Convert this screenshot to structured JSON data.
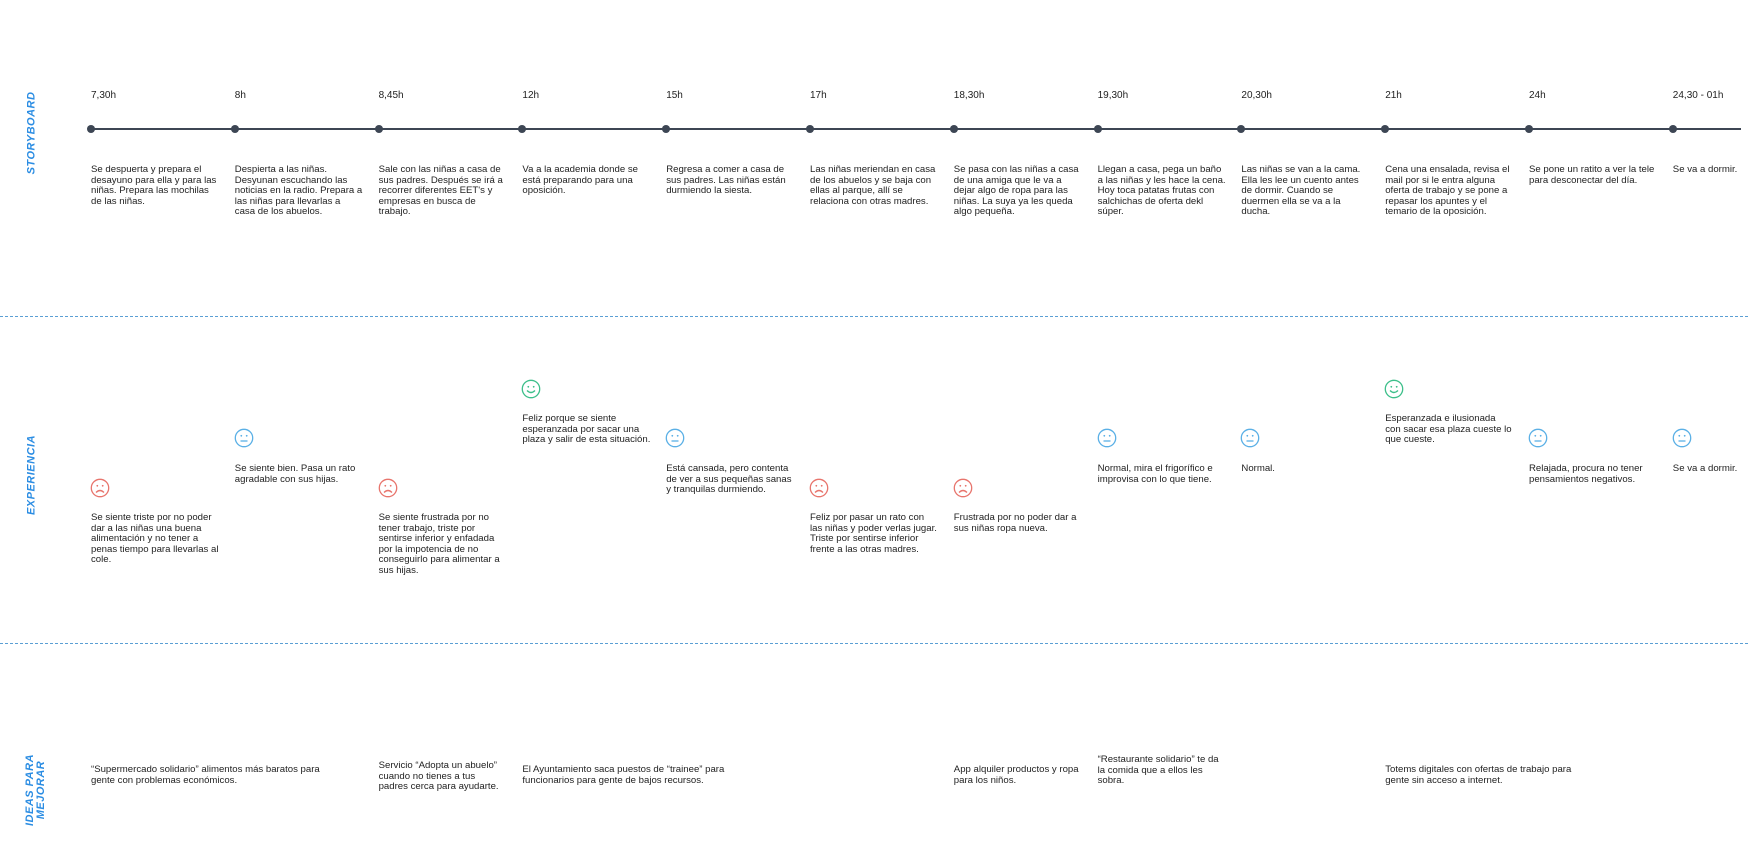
{
  "sections": {
    "storyboard": "STORYBOARD",
    "experiencia": "EXPERIENCIA",
    "ideas_line1": "IDEAS PARA",
    "ideas_line2": "MEJORAR"
  },
  "colors": {
    "sad": "#e8756d",
    "neutral": "#5bb0e6",
    "happy": "#3dbf8a",
    "section_label": "#2b8de3",
    "timeline": "#3d4654"
  },
  "storyboard": [
    {
      "time": "7,30h",
      "text": "Se despuerta y prepara el desayuno para ella y para las niñas. Prepara las mochilas de las niñas."
    },
    {
      "time": "8h",
      "text": "Despierta a las niñas. Desyunan escuchando las noticias en la radio. Prepara a las niñas para llevarlas a casa de los abuelos."
    },
    {
      "time": "8,45h",
      "text": "Sale con las niñas a casa de sus padres. Después se irá a recorrer diferentes EET's y empresas en busca de trabajo."
    },
    {
      "time": "12h",
      "text": "Va a la academia donde se está preparando para una oposición."
    },
    {
      "time": "15h",
      "text": "Regresa a comer a casa de sus padres. Las niñas están durmiendo la siesta."
    },
    {
      "time": "17h",
      "text": "Las niñas meriendan en casa de los abuelos y se baja con ellas al parque, allí se relaciona con otras madres."
    },
    {
      "time": "18,30h",
      "text": "Se pasa con las niñas a casa de una amiga que le va a dejar algo de ropa para las niñas. La suya ya les queda algo pequeña."
    },
    {
      "time": "19,30h",
      "text": "Llegan a casa, pega un baño a las niñas y les hace la cena. Hoy toca patatas frutas con salchichas de oferta dekl súper."
    },
    {
      "time": "20,30h",
      "text": "Las niñas se van a la cama. Ella les lee un cuento antes de dormir. Cuando se duermen ella se va a la ducha."
    },
    {
      "time": "21h",
      "text": "Cena una ensalada, revisa el mail por si le entra alguna oferta de trabajo y se pone a repasar los apuntes y el temario de la oposición."
    },
    {
      "time": "24h",
      "text": "Se pone un ratito a ver la tele para desconectar del día."
    },
    {
      "time": "24,30 - 01h",
      "text": "Se va a dormir."
    }
  ],
  "experiencia": [
    {
      "mood": "sad",
      "icon": "sad-face-icon",
      "text": "Se siente triste por no poder dar a las niñas una buena alimentación y no tener a penas tiempo para llevarlas al cole."
    },
    {
      "mood": "neutral",
      "icon": "neutral-face-icon",
      "text": "Se siente bien. Pasa un rato agradable con sus hijas."
    },
    {
      "mood": "sad",
      "icon": "sad-face-icon",
      "text": "Se siente frustrada por no tener trabajo, triste por sentirse inferior y enfadada por la impotencia de no conseguirlo para alimentar a sus hijas."
    },
    {
      "mood": "happy",
      "icon": "happy-face-icon",
      "text": "Feliz porque se siente esperanzada por sacar una plaza y salir de esta situación."
    },
    {
      "mood": "neutral",
      "icon": "neutral-face-icon",
      "text": "Está cansada, pero contenta de ver a sus pequeñas sanas y tranquilas durmiendo."
    },
    {
      "mood": "sad",
      "icon": "sad-face-icon",
      "text": "Feliz por pasar un rato con las niñas y poder verlas jugar. Triste por sentirse inferior frente a las otras madres."
    },
    {
      "mood": "sad",
      "icon": "sad-face-icon",
      "text": "Frustrada por no poder dar a sus niñas ropa nueva."
    },
    {
      "mood": "neutral",
      "icon": "neutral-face-icon",
      "text": "Normal, mira el frigorífico e improvisa con lo que tiene."
    },
    {
      "mood": "neutral",
      "icon": "neutral-face-icon",
      "text": "Normal."
    },
    {
      "mood": "happy",
      "icon": "happy-face-icon",
      "text": "Esperanzada e ilusionada con sacar esa plaza cueste lo que cueste."
    },
    {
      "mood": "neutral",
      "icon": "neutral-face-icon",
      "text": "Relajada, procura no tener pensamientos negativos."
    },
    {
      "mood": "neutral",
      "icon": "neutral-face-icon",
      "text": "Se va a dormir."
    }
  ],
  "ideas": [
    {
      "column": 0,
      "text": "“Supermercado solidario” alimentos más baratos para gente con problemas económicos."
    },
    {
      "column": 2,
      "text": "Servicio “Adopta un abuelo” cuando no tienes a tus padres cerca para ayudarte."
    },
    {
      "column": 3,
      "text": "El Ayuntamiento saca puestos de “trainee” para funcionarios para gente de bajos recursos."
    },
    {
      "column": 6,
      "text": "App alquiler productos y ropa para los niños."
    },
    {
      "column": 7,
      "text": "“Restaurante solidario” te da la comida que a ellos les sobra."
    },
    {
      "column": 9,
      "text": "Totems digitales con ofertas de trabajo para gente sin acceso a internet."
    }
  ]
}
